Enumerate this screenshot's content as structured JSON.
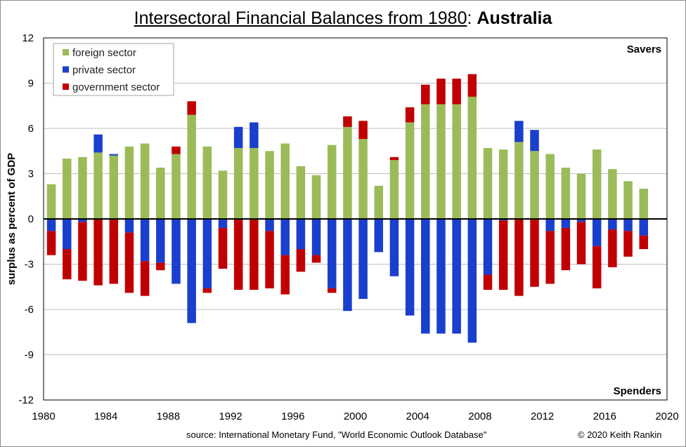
{
  "footer": {
    "source": "source:  International Monetary Fund, \"World Economic Outlook Database\"",
    "copyright": "© 2020  Keith Rankin"
  },
  "chart_data": {
    "type": "bar",
    "stacking": "diverging-stacked",
    "title_main": "Intersectoral Financial Balances from 1980",
    "title_sep": ": ",
    "title_country": "Australia",
    "xlabel": "",
    "ylabel": "surplus as percent of GDP",
    "ylim": [
      -12,
      12
    ],
    "xlim": [
      1980,
      2020
    ],
    "yticks": [
      12,
      9,
      6,
      3,
      0,
      -3,
      -6,
      -9,
      -12
    ],
    "xticks": [
      1980,
      1984,
      1988,
      1992,
      1996,
      2000,
      2004,
      2008,
      2012,
      2016,
      2020
    ],
    "grid": true,
    "legend_position": "top-left",
    "annotations": {
      "top_right": "Savers",
      "bottom_right": "Spenders"
    },
    "categories": [
      1980,
      1981,
      1982,
      1983,
      1984,
      1985,
      1986,
      1987,
      1988,
      1989,
      1990,
      1991,
      1992,
      1993,
      1994,
      1995,
      1996,
      1997,
      1998,
      1999,
      2000,
      2001,
      2002,
      2003,
      2004,
      2005,
      2006,
      2007,
      2008,
      2009,
      2010,
      2011,
      2012,
      2013,
      2014,
      2015,
      2016,
      2017,
      2018
    ],
    "series": [
      {
        "name": "foreign sector",
        "color": "#9bbb59",
        "values": [
          2.3,
          4.0,
          4.1,
          4.4,
          4.2,
          4.8,
          5.0,
          3.4,
          4.3,
          6.9,
          4.8,
          3.2,
          4.7,
          4.7,
          4.5,
          5.0,
          3.5,
          2.9,
          4.9,
          6.1,
          5.3,
          2.2,
          3.9,
          6.4,
          7.6,
          7.6,
          7.6,
          8.1,
          4.7,
          4.6,
          5.1,
          4.5,
          4.3,
          3.4,
          3.0,
          4.6,
          3.3,
          2.5,
          2.0
        ]
      },
      {
        "name": "private sector",
        "color": "#1a3fcc",
        "values": [
          -0.8,
          -2.0,
          -0.2,
          1.2,
          0.1,
          -0.9,
          -2.8,
          -2.9,
          -4.3,
          -6.9,
          -4.6,
          -0.6,
          1.4,
          1.7,
          -0.8,
          -2.4,
          -2.0,
          -2.4,
          -4.6,
          -6.1,
          -5.3,
          -2.2,
          -3.8,
          -6.4,
          -7.6,
          -7.6,
          -7.6,
          -8.2,
          -3.7,
          -0.1,
          1.4,
          1.4,
          -0.8,
          -0.6,
          -0.2,
          -1.8,
          -0.7,
          -0.8,
          -1.1
        ]
      },
      {
        "name": "government sector",
        "color": "#c00000",
        "values": [
          -1.6,
          -2.0,
          -3.9,
          -4.4,
          -4.3,
          -4.0,
          -2.3,
          -0.5,
          0.5,
          0.9,
          -0.3,
          -2.7,
          -4.7,
          -4.7,
          -3.8,
          -2.6,
          -1.5,
          -0.5,
          -0.3,
          0.7,
          1.2,
          0.0,
          0.2,
          1.0,
          1.3,
          1.7,
          1.7,
          1.5,
          -1.0,
          -4.6,
          -5.1,
          -4.5,
          -3.5,
          -2.8,
          -2.8,
          -2.8,
          -2.5,
          -1.7,
          -0.9
        ]
      }
    ]
  }
}
